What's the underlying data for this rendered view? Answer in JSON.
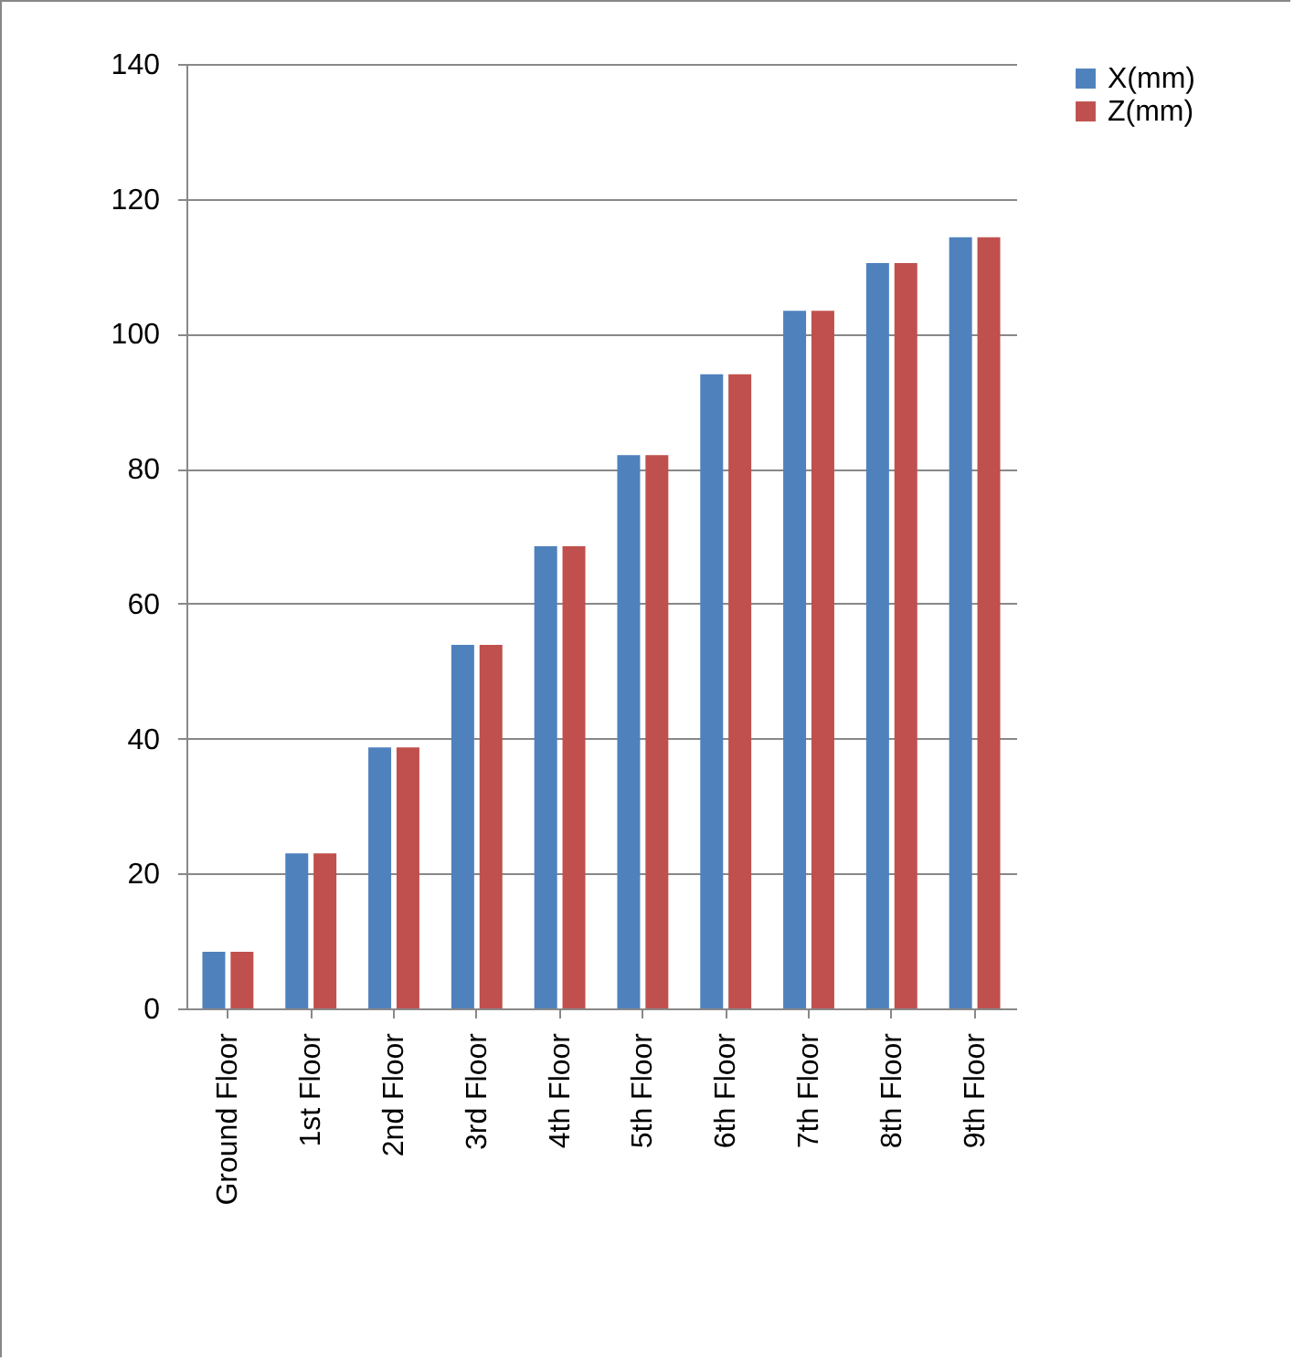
{
  "chart_data": {
    "type": "bar",
    "categories": [
      "Ground Floor",
      "1st Floor",
      "2nd Floor",
      "3rd Floor",
      "4th Floor",
      "5th Floor",
      "6th Floor",
      "7th Floor",
      "8th Floor",
      "9th Floor"
    ],
    "series": [
      {
        "name": "X(mm)",
        "color": "#4f81bd",
        "values": [
          8.4,
          23,
          38.7,
          53.9,
          68.5,
          82,
          94,
          103.4,
          110.5,
          114.3
        ]
      },
      {
        "name": "Z(mm)",
        "color": "#c0504d",
        "values": [
          8.4,
          23,
          38.7,
          53.9,
          68.5,
          82,
          94,
          103.4,
          110.5,
          114.3
        ]
      }
    ],
    "ylim": [
      0,
      140
    ],
    "yticks": [
      0,
      20,
      40,
      60,
      80,
      100,
      120,
      140
    ],
    "grid": "y",
    "legend": "right"
  }
}
